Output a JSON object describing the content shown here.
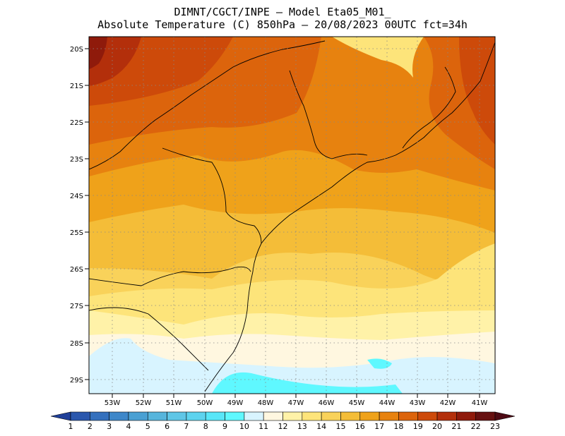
{
  "header": {
    "line1": "DIMNT/CGCT/INPE –  Model Eta05_M01_",
    "line2": "Absolute Temperature (C) 850hPa –  20/08/2023 00UTC fct=34h"
  },
  "axes": {
    "lat_labels": [
      "20S",
      "21S",
      "22S",
      "23S",
      "24S",
      "25S",
      "26S",
      "27S",
      "28S",
      "29S"
    ],
    "lon_labels": [
      "53W",
      "52W",
      "51W",
      "50W",
      "49W",
      "48W",
      "47W",
      "46W",
      "45W",
      "44W",
      "43W",
      "42W",
      "41W"
    ]
  },
  "colorbar": {
    "labels": [
      "1",
      "2",
      "3",
      "4",
      "5",
      "6",
      "7",
      "8",
      "9",
      "10",
      "11",
      "12",
      "13",
      "14",
      "15",
      "16",
      "17",
      "18",
      "19",
      "20",
      "21",
      "22",
      "23"
    ],
    "colors": [
      "#1f3f99",
      "#2a57ad",
      "#3470bd",
      "#3e87c9",
      "#4aa0d3",
      "#57b5dc",
      "#5fc6e6",
      "#5dd3ee",
      "#58e6f8",
      "#5ff8ff",
      "#d8f4ff",
      "#fff7e0",
      "#fff2a8",
      "#fde47a",
      "#f9d25a",
      "#f4bd38",
      "#efa21a",
      "#e7820f",
      "#dc640c",
      "#cd4a0a",
      "#b32f0b",
      "#8f1a0b",
      "#661010",
      "#4d0a14"
    ]
  },
  "map_colors": {
    "c10": "#5ff8ff",
    "c11": "#d8f4ff",
    "c12": "#fff7e0",
    "c13": "#fff2a8",
    "c14": "#fde47a",
    "c15": "#f9d25a",
    "c16": "#f4bd38",
    "c17": "#efa21a",
    "c18": "#e7820f",
    "c19": "#dc640c",
    "c20": "#cd4a0a",
    "c21": "#b32f0b",
    "c22": "#8f1a0b"
  }
}
